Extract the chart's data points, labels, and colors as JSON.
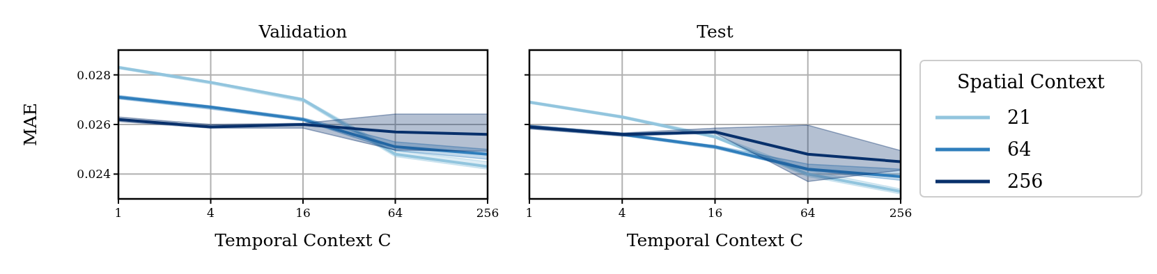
{
  "chart_data": [
    {
      "type": "line",
      "title": "Validation",
      "xlabel": "Temporal Context C",
      "ylabel": "MAE",
      "log": "x",
      "x": [
        1,
        4,
        16,
        64,
        256
      ],
      "xlim": [
        1,
        256
      ],
      "xticks": [
        1,
        4,
        16,
        64,
        256
      ],
      "ylim": [
        0.023,
        0.029
      ],
      "yticks": [
        0.024,
        0.026,
        0.028
      ],
      "grid": true,
      "legend": false,
      "line_style": "solid",
      "series": [
        {
          "color": "#92c5de",
          "values": [
            0.0283,
            0.0277,
            0.027,
            0.0248,
            0.0243
          ],
          "lower": [
            0.02825,
            0.02763,
            0.02692,
            0.0247,
            0.0242
          ],
          "upper": [
            0.02835,
            0.02773,
            0.02705,
            0.02495,
            0.0245
          ]
        },
        {
          "color": "#2f7ebc",
          "values": [
            0.0271,
            0.0267,
            0.0262,
            0.0251,
            0.0248
          ],
          "lower": [
            0.02703,
            0.02662,
            0.02615,
            0.02495,
            0.0246
          ],
          "upper": [
            0.02717,
            0.02675,
            0.02627,
            0.0253,
            0.025
          ]
        },
        {
          "color": "#08306b",
          "values": [
            0.0262,
            0.0259,
            0.026,
            0.0257,
            0.0256
          ],
          "lower": [
            0.02612,
            0.02585,
            0.02585,
            0.02497,
            0.02492
          ],
          "upper": [
            0.0263,
            0.026,
            0.02605,
            0.02642,
            0.02642
          ]
        }
      ]
    },
    {
      "type": "line",
      "title": "Test",
      "xlabel": "Temporal Context C",
      "log": "x",
      "x": [
        1,
        4,
        16,
        64,
        256
      ],
      "xlim": [
        1,
        256
      ],
      "xticks": [
        1,
        4,
        16,
        64,
        256
      ],
      "ylim": [
        0.023,
        0.029
      ],
      "yticks": [
        0.024,
        0.026,
        0.028
      ],
      "tick_labels": "x",
      "grid": true,
      "legend_title": "Spatial Context",
      "legend": "right",
      "line_style": "solid",
      "series": [
        {
          "name": "21",
          "color": "#92c5de",
          "values": [
            0.0269,
            0.0263,
            0.0255,
            0.024,
            0.0233
          ],
          "lower": [
            0.02685,
            0.02625,
            0.02545,
            0.0239,
            0.0232
          ],
          "upper": [
            0.02695,
            0.02635,
            0.02558,
            0.02415,
            0.0234
          ]
        },
        {
          "name": "64",
          "color": "#2f7ebc",
          "values": [
            0.0259,
            0.0256,
            0.0251,
            0.0242,
            0.0239
          ],
          "lower": [
            0.02585,
            0.02555,
            0.02503,
            0.02415,
            0.02375
          ],
          "upper": [
            0.02597,
            0.02565,
            0.02515,
            0.0244,
            0.0242
          ]
        },
        {
          "name": "256",
          "color": "#08306b",
          "values": [
            0.0259,
            0.0256,
            0.0257,
            0.0248,
            0.0245
          ],
          "lower": [
            0.02582,
            0.02553,
            0.02565,
            0.0237,
            0.02416
          ],
          "upper": [
            0.02597,
            0.02566,
            0.02585,
            0.02597,
            0.02495
          ]
        }
      ]
    }
  ]
}
